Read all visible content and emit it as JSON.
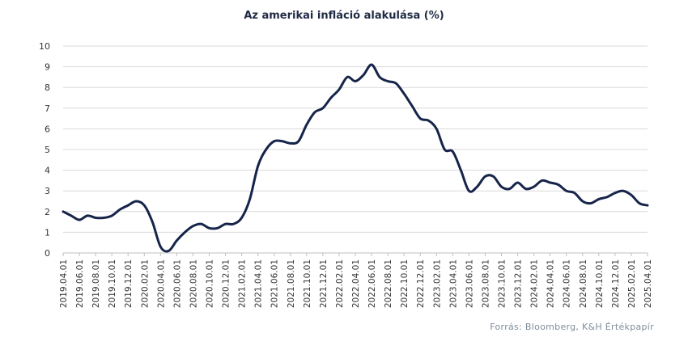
{
  "chart_data": {
    "type": "line",
    "title": "Az amerikai infláció alakulása (%)",
    "xlabel": "",
    "ylabel": "",
    "ylim": [
      0,
      10
    ],
    "y_ticks": [
      "0",
      "1",
      "2",
      "3",
      "4",
      "5",
      "6",
      "7",
      "8",
      "9",
      "10"
    ],
    "grid": true,
    "line_color": "#16244a",
    "x_tick_labels": [
      "2019.04.01",
      "2019.06.01",
      "2019.08.01",
      "2019.10.01",
      "2019.12.01",
      "2020.02.01",
      "2020.04.01",
      "2020.06.01",
      "2020.08.01",
      "2020.10.01",
      "2020.12.01",
      "2021.02.01",
      "2021.04.01",
      "2021.06.01",
      "2021.08.01",
      "2021.10.01",
      "2021.12.01",
      "2022.02.01",
      "2022.04.01",
      "2022.06.01",
      "2022.08.01",
      "2022.10.01",
      "2022.12.01",
      "2023.02.01",
      "2023.04.01",
      "2023.06.01",
      "2023.08.01",
      "2023.10.01",
      "2023.12.01",
      "2024.02.01",
      "2024.04.01",
      "2024.06.01",
      "2024.08.01",
      "2024.10.01",
      "2024.12.01",
      "2025.02.01",
      "2025.04.01"
    ],
    "x": [
      "2019.04.01",
      "2019.05.01",
      "2019.06.01",
      "2019.07.01",
      "2019.08.01",
      "2019.09.01",
      "2019.10.01",
      "2019.11.01",
      "2019.12.01",
      "2020.01.01",
      "2020.02.01",
      "2020.03.01",
      "2020.04.01",
      "2020.05.01",
      "2020.06.01",
      "2020.07.01",
      "2020.08.01",
      "2020.09.01",
      "2020.10.01",
      "2020.11.01",
      "2020.12.01",
      "2021.01.01",
      "2021.02.01",
      "2021.03.01",
      "2021.04.01",
      "2021.05.01",
      "2021.06.01",
      "2021.07.01",
      "2021.08.01",
      "2021.09.01",
      "2021.10.01",
      "2021.11.01",
      "2021.12.01",
      "2022.01.01",
      "2022.02.01",
      "2022.03.01",
      "2022.04.01",
      "2022.05.01",
      "2022.06.01",
      "2022.07.01",
      "2022.08.01",
      "2022.09.01",
      "2022.10.01",
      "2022.11.01",
      "2022.12.01",
      "2023.01.01",
      "2023.02.01",
      "2023.03.01",
      "2023.04.01",
      "2023.05.01",
      "2023.06.01",
      "2023.07.01",
      "2023.08.01",
      "2023.09.01",
      "2023.10.01",
      "2023.11.01",
      "2023.12.01",
      "2024.01.01",
      "2024.02.01",
      "2024.03.01",
      "2024.04.01",
      "2024.05.01",
      "2024.06.01",
      "2024.07.01",
      "2024.08.01",
      "2024.09.01",
      "2024.10.01",
      "2024.11.01",
      "2024.12.01",
      "2025.01.01",
      "2025.02.01",
      "2025.03.01",
      "2025.04.01"
    ],
    "values": [
      2.0,
      1.8,
      1.6,
      1.8,
      1.7,
      1.7,
      1.8,
      2.1,
      2.3,
      2.5,
      2.3,
      1.5,
      0.3,
      0.1,
      0.6,
      1.0,
      1.3,
      1.4,
      1.2,
      1.2,
      1.4,
      1.4,
      1.7,
      2.6,
      4.2,
      5.0,
      5.4,
      5.4,
      5.3,
      5.4,
      6.2,
      6.8,
      7.0,
      7.5,
      7.9,
      8.5,
      8.3,
      8.6,
      9.1,
      8.5,
      8.3,
      8.2,
      7.7,
      7.1,
      6.5,
      6.4,
      6.0,
      5.0,
      4.9,
      4.0,
      3.0,
      3.2,
      3.7,
      3.7,
      3.2,
      3.1,
      3.4,
      3.1,
      3.2,
      3.5,
      3.4,
      3.3,
      3.0,
      2.9,
      2.5,
      2.4,
      2.6,
      2.7,
      2.9,
      3.0,
      2.8,
      2.4,
      2.3
    ]
  },
  "footer": {
    "source": "Forrás: Bloomberg,  K&H Értékpapír"
  }
}
